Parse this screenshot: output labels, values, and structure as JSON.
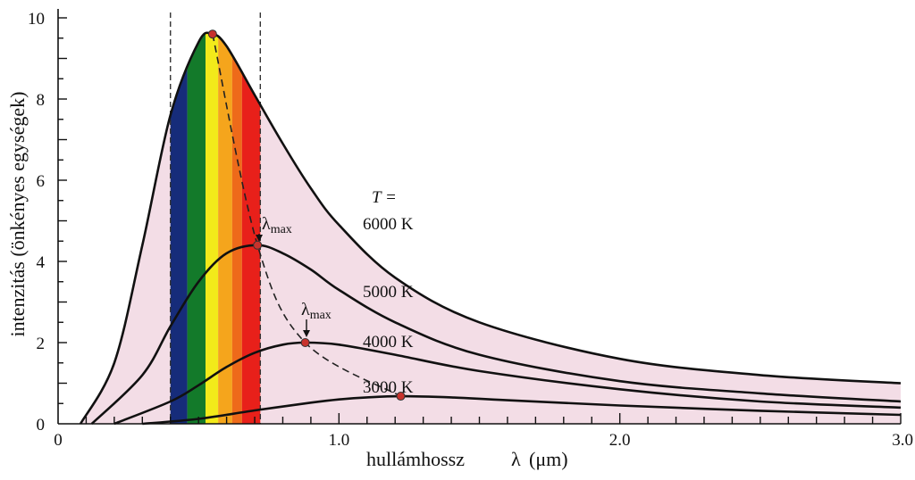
{
  "chart_data": {
    "type": "line",
    "xlabel": "hullámhossz",
    "xlabel_symbol": "λ",
    "xlabel_unit": "(μm)",
    "ylabel": "intenzitás (önkényes egységek)",
    "xlim": [
      0,
      3.0
    ],
    "ylim": [
      0,
      10
    ],
    "x_ticks": [
      "0",
      "1.0",
      "2.0",
      "3.0"
    ],
    "y_ticks": [
      "0",
      "2",
      "4",
      "6",
      "8",
      "10"
    ],
    "grid": false,
    "temperature_header": "T =",
    "series": [
      {
        "name": "6000 K",
        "peak_x": 0.55,
        "peak_y": 9.6,
        "points": [
          [
            0.08,
            0
          ],
          [
            0.2,
            1.5
          ],
          [
            0.3,
            4.4
          ],
          [
            0.4,
            7.6
          ],
          [
            0.5,
            9.4
          ],
          [
            0.55,
            9.6
          ],
          [
            0.6,
            9.3
          ],
          [
            0.7,
            8.1
          ],
          [
            0.8,
            6.9
          ],
          [
            0.9,
            5.8
          ],
          [
            1.0,
            4.9
          ],
          [
            1.2,
            3.6
          ],
          [
            1.5,
            2.5
          ],
          [
            2.0,
            1.6
          ],
          [
            2.5,
            1.2
          ],
          [
            3.0,
            1.0
          ]
        ]
      },
      {
        "name": "5000 K",
        "peak_x": 0.71,
        "peak_y": 4.4,
        "points": [
          [
            0.12,
            0
          ],
          [
            0.3,
            1.2
          ],
          [
            0.4,
            2.4
          ],
          [
            0.5,
            3.5
          ],
          [
            0.6,
            4.2
          ],
          [
            0.71,
            4.4
          ],
          [
            0.8,
            4.2
          ],
          [
            0.9,
            3.8
          ],
          [
            1.0,
            3.3
          ],
          [
            1.2,
            2.5
          ],
          [
            1.5,
            1.7
          ],
          [
            2.0,
            1.05
          ],
          [
            2.5,
            0.75
          ],
          [
            3.0,
            0.55
          ]
        ]
      },
      {
        "name": "4000 K",
        "peak_x": 0.88,
        "peak_y": 2.0,
        "points": [
          [
            0.2,
            0
          ],
          [
            0.4,
            0.55
          ],
          [
            0.5,
            0.95
          ],
          [
            0.6,
            1.4
          ],
          [
            0.7,
            1.75
          ],
          [
            0.8,
            1.95
          ],
          [
            0.88,
            2.0
          ],
          [
            1.0,
            1.95
          ],
          [
            1.2,
            1.7
          ],
          [
            1.5,
            1.3
          ],
          [
            2.0,
            0.85
          ],
          [
            2.5,
            0.55
          ],
          [
            3.0,
            0.4
          ]
        ]
      },
      {
        "name": "3000 K",
        "peak_x": 1.22,
        "peak_y": 0.68,
        "points": [
          [
            0.3,
            0
          ],
          [
            0.5,
            0.12
          ],
          [
            0.7,
            0.33
          ],
          [
            0.9,
            0.52
          ],
          [
            1.0,
            0.6
          ],
          [
            1.1,
            0.65
          ],
          [
            1.22,
            0.68
          ],
          [
            1.4,
            0.65
          ],
          [
            1.6,
            0.58
          ],
          [
            2.0,
            0.45
          ],
          [
            2.5,
            0.32
          ],
          [
            3.0,
            0.22
          ]
        ]
      }
    ],
    "peak_locus": [
      [
        0.55,
        9.6
      ],
      [
        0.71,
        4.4
      ],
      [
        0.88,
        2.0
      ],
      [
        1.22,
        0.68
      ]
    ],
    "annotation_text": "λ",
    "annotation_sub": "max",
    "visible_spectrum": {
      "bounds": [
        0.4,
        0.72
      ],
      "bands": [
        {
          "from": 0.4,
          "to": 0.46,
          "color": "#162c7a"
        },
        {
          "from": 0.46,
          "to": 0.525,
          "color": "#137a2a"
        },
        {
          "from": 0.525,
          "to": 0.57,
          "color": "#f2ea1a"
        },
        {
          "from": 0.57,
          "to": 0.62,
          "color": "#f5a51c"
        },
        {
          "from": 0.62,
          "to": 0.655,
          "color": "#ee6a1a"
        },
        {
          "from": 0.655,
          "to": 0.72,
          "color": "#e8201a"
        }
      ]
    },
    "colors": {
      "fill": "#f3dde6",
      "curve": "#111111",
      "peak_marker": "#c8322c"
    }
  }
}
